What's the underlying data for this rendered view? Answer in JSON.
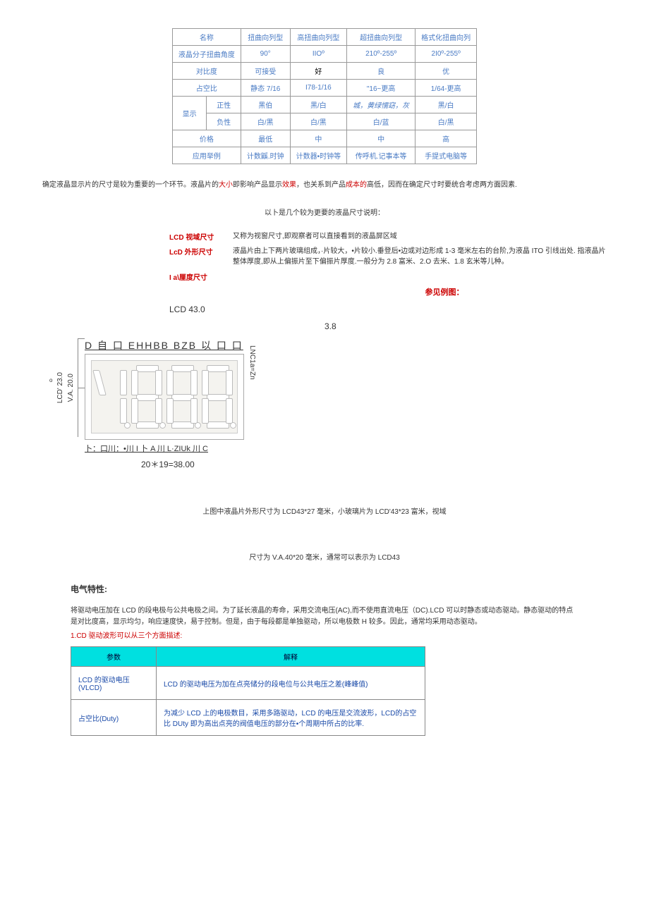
{
  "table1": {
    "headers": [
      "名称",
      "扭曲向列型",
      "高扭曲向列型",
      "超扭曲向列型",
      "格式化扭曲向列"
    ],
    "rows": [
      {
        "label": "液晶分子扭曲角度",
        "c": [
          "90°",
          "IIOº",
          "210º-255º",
          "2I0º-255º"
        ]
      },
      {
        "label": "对比度",
        "c": [
          "可接受",
          "好",
          "良",
          "优"
        ],
        "blackIdx": 1
      },
      {
        "label": "占空比",
        "c": [
          "静态 7/16",
          "I78-1/16",
          "\"16~更高",
          "1/64-更高"
        ]
      }
    ],
    "display": {
      "label": "显示",
      "sub": [
        {
          "l": "正性",
          "c": [
            "黑伯",
            "黑/白",
            "城，黄绿懦窈，灰",
            "黑/白"
          ]
        },
        {
          "l": "负性",
          "c": [
            "白/黑",
            "白/黑",
            "白/蓝",
            "白/黑"
          ]
        }
      ]
    },
    "tail": [
      {
        "label": "价格",
        "c": [
          "最低",
          "中",
          "中",
          "高"
        ]
      },
      {
        "label": "应用举例",
        "c": [
          "计数鼷.时钟",
          "计数器•时钟等",
          "传呼机.记事本等",
          "手提式电脑等"
        ]
      }
    ]
  },
  "note1": {
    "pre": "确定液晶显示片的尺寸是较为重要的一个环节。液晶片的",
    "r1": "大小",
    "mid1": "即影响产品显示",
    "r2": "效果",
    "mid2": "，也关系到产品",
    "r3": "成本的",
    "post": "高低，因而在确定尺寸时要统合考虑两方面因素."
  },
  "center1": "以卜是几个较为更要的液晶尺寸说明：",
  "defs": [
    {
      "label": "LCD 视域尺寸",
      "text": "又称为视窗尺寸,即观察者可以直接看到的液晶屏区域"
    },
    {
      "label": "LcD 外形尺寸",
      "text": "液晶片由上下两片玻璃组成，·片较大，•片较小.垂登后•边或对边形成 1-3 毫米左右的台阶,为液晶 ITO 引线出处. 指液晶片整体厚度,即从上偏振片至下偏振片厚度.一般分为 2.8 富米、2.O 去米、1.8 玄米等儿种。"
    },
    {
      "label": "I a\\厘度尺寸",
      "text": ""
    }
  ],
  "ref": "参见例图：",
  "lcdTitle": "LCD 43.0",
  "dim38": "3.8",
  "diagram": {
    "top": "D 自 口 EHHBB BZB 以 口 口",
    "left1": "LCD' 23.0",
    "left2": "V.A. 20.0",
    "right": "LNC1a=Zn",
    "bottom": "卜：口川：•川 I 卜 A 川 L·ZIUk 川 C",
    "calc": "20＊19=38.00",
    "deg": "o"
  },
  "desc2a": "上图中液晶片外形尺寸为 LCD43*27 毫米，小玻璃片为 LCD'43*23 富米，视域",
  "desc2b": "尺寸为 V.A.40*20 毫米，通常可以表示为 LCD43",
  "secTitle": "电气特性:",
  "para1": "将驱动电压加在 LCD 的段电极与公共电极之间。为了延长液晶的寿命，采用交流电压(AC),而不使用直流电压（DC).LCD 可以时静态或动态驱动。静态驱动的特点是对比度高，显示均匀，响应速度快，易于控制。但是，由于每段都是单独驱动，所以电极数 H 较多。因此，通常均采用动态驱动。",
  "para2": "1.CD 驱动波形可以从三个方面描述:",
  "paramTable": {
    "headers": [
      "参数",
      "解释"
    ],
    "rows": [
      {
        "label": "LCD 的驱动电压(VLCD)",
        "desc": "LCD 的驱动电压为加在点亮储分的段电位与公共电压之差(峰峰值)"
      },
      {
        "label": "占空比(Duty)",
        "desc": "为减少 LCD 上的电极数目，采用多路驱动，LCD 的电压是交流波形，LCD的占空比 DUty 即为高出点亮的阀值电压的部分在•个周期中所占的比率."
      }
    ]
  }
}
